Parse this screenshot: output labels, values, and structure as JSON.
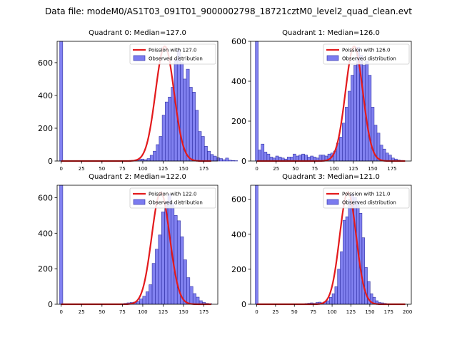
{
  "figure": {
    "title": "Data file: modeM0/AS1T03_091T01_9000002798_18721cztM0_level2_quad_clean.evt"
  },
  "colors": {
    "bar_fill": "#7b7bf0",
    "bar_edge": "#2a2aa0",
    "poisson_line": "#e31a1c",
    "axis": "#000000"
  },
  "chart_data": [
    {
      "type": "bar+line",
      "title": "Quadrant 0: Median=127.0",
      "legend": [
        "Poission with 127.0",
        "Observed distribution"
      ],
      "legend_loc": "upper-right",
      "xlim": [
        -5,
        192
      ],
      "ylim": [
        0,
        730
      ],
      "xticks": [
        0,
        25,
        50,
        75,
        100,
        125,
        150,
        175
      ],
      "yticks": [
        0,
        200,
        400,
        600
      ],
      "bin_width": 3.7,
      "spike": {
        "x": 0,
        "value": 730
      },
      "poisson_mean": 127.0,
      "poisson_peak": 700,
      "bars": {
        "start": 79.4,
        "values": [
          2,
          3,
          5,
          8,
          10,
          12,
          8,
          15,
          35,
          60,
          100,
          150,
          280,
          360,
          390,
          450,
          620,
          680,
          600,
          500,
          560,
          450,
          420,
          310,
          180,
          150,
          90,
          60,
          40,
          30,
          20,
          15,
          8,
          18,
          5,
          3,
          2
        ]
      }
    },
    {
      "type": "bar+line",
      "title": "Quadrant 1: Median=126.0",
      "legend": [
        "Poission with 126.0",
        "Observed distribution"
      ],
      "legend_loc": "upper-right",
      "xlim": [
        -8,
        200
      ],
      "ylim": [
        0,
        600
      ],
      "xticks": [
        0,
        25,
        50,
        75,
        100,
        125,
        150,
        175
      ],
      "yticks": [
        0,
        200,
        400,
        600
      ],
      "bin_width": 3.75,
      "spike": {
        "x": 0,
        "value": 600
      },
      "poisson_mean": 126.0,
      "poisson_peak": 575,
      "bars": {
        "start": 1.875,
        "values": [
          55,
          85,
          45,
          35,
          20,
          15,
          25,
          20,
          15,
          10,
          20,
          20,
          35,
          25,
          30,
          35,
          30,
          20,
          25,
          20,
          15,
          30,
          30,
          25,
          35,
          40,
          50,
          90,
          120,
          190,
          270,
          350,
          430,
          480,
          570,
          530,
          480,
          500,
          430,
          270,
          180,
          140,
          80,
          60,
          40,
          30,
          15,
          10,
          5,
          3
        ]
      }
    },
    {
      "type": "bar+line",
      "title": "Quadrant 2: Median=122.0",
      "legend": [
        "Poission with 122.0",
        "Observed distribution"
      ],
      "legend_loc": "upper-right",
      "xlim": [
        -5,
        192
      ],
      "ylim": [
        0,
        670
      ],
      "xticks": [
        0,
        25,
        50,
        75,
        100,
        125,
        150,
        175
      ],
      "yticks": [
        0,
        200,
        400,
        600
      ],
      "bin_width": 3.85,
      "spike": {
        "x": 0,
        "value": 670
      },
      "poisson_mean": 122.0,
      "poisson_peak": 630,
      "bars": {
        "start": 73.0,
        "values": [
          3,
          5,
          8,
          10,
          12,
          15,
          30,
          45,
          70,
          110,
          230,
          310,
          390,
          520,
          580,
          620,
          570,
          500,
          470,
          380,
          250,
          150,
          100,
          60,
          40,
          20,
          10,
          5,
          3
        ]
      }
    },
    {
      "type": "bar+line",
      "title": "Quadrant 3: Median=121.0",
      "legend": [
        "Poission with 121.0",
        "Observed distribution"
      ],
      "legend_loc": "upper-right",
      "xlim": [
        -8,
        205
      ],
      "ylim": [
        0,
        680
      ],
      "xticks": [
        0,
        25,
        50,
        75,
        100,
        125,
        150,
        175,
        200
      ],
      "yticks": [
        0,
        200,
        400,
        600
      ],
      "bin_width": 3.6,
      "spike": {
        "x": 0,
        "value": 680
      },
      "poisson_mean": 121.0,
      "poisson_peak": 640,
      "bars": {
        "start": 60.4,
        "values": [
          2,
          4,
          6,
          8,
          5,
          10,
          12,
          8,
          15,
          20,
          40,
          60,
          100,
          200,
          300,
          480,
          500,
          600,
          630,
          610,
          590,
          520,
          380,
          210,
          130,
          60,
          40,
          20,
          10,
          8,
          5,
          3
        ]
      }
    }
  ]
}
